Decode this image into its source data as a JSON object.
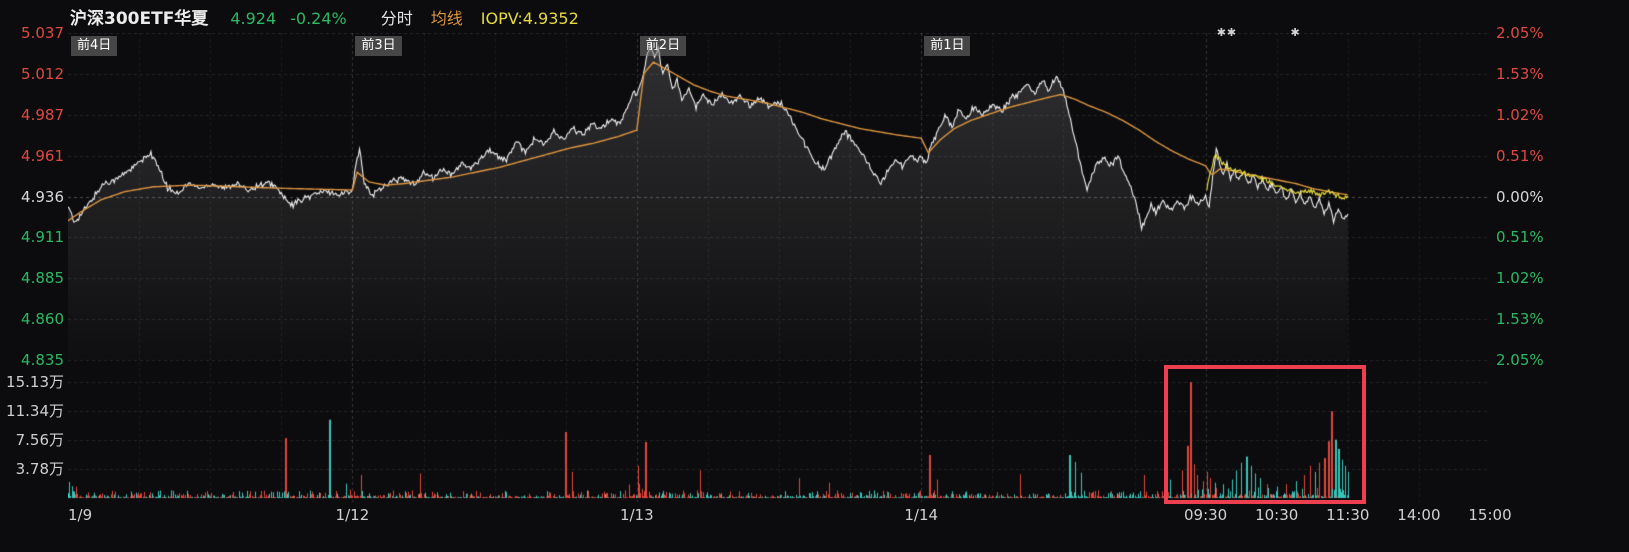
{
  "palette": {
    "up": "#dd4a42",
    "down": "#2db863",
    "ma": "#de9640",
    "iopv": "#e4da3c",
    "price-line": "#f2f2f2",
    "vol-up": "#e2463c",
    "vol-down": "#38c6ba",
    "highlight": "#ee3f51"
  },
  "header": {
    "symbol": "沪深300ETF华夏",
    "price": "4.924",
    "change": "-0.24%",
    "mode": "分时",
    "ma_label": "均线",
    "iopv_label": "IOPV:4.9352"
  },
  "axes": {
    "price_left": [
      {
        "t": "5.037",
        "tone": "up"
      },
      {
        "t": "5.012",
        "tone": "up"
      },
      {
        "t": "4.987",
        "tone": "up"
      },
      {
        "t": "4.961",
        "tone": "up"
      },
      {
        "t": "4.936",
        "tone": "flat"
      },
      {
        "t": "4.911",
        "tone": "down"
      },
      {
        "t": "4.885",
        "tone": "down"
      },
      {
        "t": "4.860",
        "tone": "down"
      },
      {
        "t": "4.835",
        "tone": "down"
      }
    ],
    "pct_right": [
      {
        "t": "2.05%",
        "tone": "up"
      },
      {
        "t": "1.53%",
        "tone": "up"
      },
      {
        "t": "1.02%",
        "tone": "up"
      },
      {
        "t": "0.51%",
        "tone": "up"
      },
      {
        "t": "0.00%",
        "tone": "flat"
      },
      {
        "t": "0.51%",
        "tone": "down"
      },
      {
        "t": "1.02%",
        "tone": "down"
      },
      {
        "t": "1.53%",
        "tone": "down"
      },
      {
        "t": "2.05%",
        "tone": "down"
      }
    ],
    "volume_left": [
      "15.13万",
      "11.34万",
      "7.56万",
      "3.78万"
    ],
    "x_labels": [
      {
        "t": "1/9",
        "m": 0,
        "align": "start"
      },
      {
        "t": "1/12",
        "m": 240,
        "align": "center"
      },
      {
        "t": "1/13",
        "m": 480,
        "align": "center"
      },
      {
        "t": "1/14",
        "m": 720,
        "align": "center"
      },
      {
        "t": "09:30",
        "m": 960,
        "align": "center"
      },
      {
        "t": "10:30",
        "m": 1020,
        "align": "center"
      },
      {
        "t": "11:30",
        "m": 1080,
        "align": "center"
      },
      {
        "t": "14:00",
        "m": 1140,
        "align": "center"
      },
      {
        "t": "15:00",
        "m": 1200,
        "align": "center"
      }
    ]
  },
  "overlays": {
    "day_tags": [
      {
        "t": "前4日",
        "m": 0
      },
      {
        "t": "前3日",
        "m": 240
      },
      {
        "t": "前2日",
        "m": 480
      },
      {
        "t": "前1日",
        "m": 720
      }
    ],
    "markers": [
      {
        "t": "✱✱",
        "m": 978
      },
      {
        "t": "✱",
        "m": 1036
      }
    ],
    "highlight_box": {
      "m_start": 928,
      "m_end": 1092
    }
  },
  "chart_data": {
    "type": "line",
    "title": "沪深300ETF华夏 多日分时图 (5日)",
    "prev_close": 4.936,
    "current_price": 4.924,
    "current_change_pct": -0.24,
    "iopv": 4.9352,
    "x_total_minutes": 1200,
    "minutes_per_day": 240,
    "data_end_minute": 1080,
    "day_starts": [
      0,
      240,
      480,
      720,
      960
    ],
    "price_axis_values": [
      5.037,
      5.012,
      4.987,
      4.961,
      4.936,
      4.911,
      4.885,
      4.86,
      4.835
    ],
    "pct_axis_values": [
      2.05,
      1.53,
      1.02,
      0.51,
      0.0,
      -0.51,
      -1.02,
      -1.53,
      -2.05
    ],
    "volume_axis_values": [
      15.13,
      11.34,
      7.56,
      3.78
    ],
    "volume_unit": "万",
    "price_anchors": [
      [
        0,
        4.93
      ],
      [
        5,
        4.92
      ],
      [
        12,
        4.926
      ],
      [
        20,
        4.934
      ],
      [
        30,
        4.944
      ],
      [
        42,
        4.947
      ],
      [
        52,
        4.953
      ],
      [
        62,
        4.958
      ],
      [
        70,
        4.963
      ],
      [
        76,
        4.954
      ],
      [
        84,
        4.941
      ],
      [
        92,
        4.938
      ],
      [
        102,
        4.944
      ],
      [
        112,
        4.941
      ],
      [
        122,
        4.944
      ],
      [
        132,
        4.941
      ],
      [
        142,
        4.944
      ],
      [
        152,
        4.94
      ],
      [
        162,
        4.943
      ],
      [
        172,
        4.944
      ],
      [
        180,
        4.938
      ],
      [
        188,
        4.93
      ],
      [
        196,
        4.934
      ],
      [
        206,
        4.937
      ],
      [
        218,
        4.939
      ],
      [
        230,
        4.937
      ],
      [
        240,
        4.941
      ],
      [
        243,
        4.956
      ],
      [
        246,
        4.966
      ],
      [
        250,
        4.944
      ],
      [
        256,
        4.937
      ],
      [
        264,
        4.941
      ],
      [
        272,
        4.945
      ],
      [
        282,
        4.947
      ],
      [
        292,
        4.943
      ],
      [
        300,
        4.951
      ],
      [
        308,
        4.947
      ],
      [
        316,
        4.953
      ],
      [
        324,
        4.949
      ],
      [
        332,
        4.957
      ],
      [
        340,
        4.953
      ],
      [
        348,
        4.96
      ],
      [
        356,
        4.965
      ],
      [
        362,
        4.961
      ],
      [
        370,
        4.958
      ],
      [
        378,
        4.97
      ],
      [
        386,
        4.964
      ],
      [
        394,
        4.972
      ],
      [
        402,
        4.968
      ],
      [
        410,
        4.976
      ],
      [
        418,
        4.971
      ],
      [
        426,
        4.978
      ],
      [
        434,
        4.974
      ],
      [
        442,
        4.981
      ],
      [
        450,
        4.977
      ],
      [
        458,
        4.984
      ],
      [
        466,
        4.981
      ],
      [
        472,
        4.991
      ],
      [
        478,
        5.001
      ],
      [
        480,
        4.998
      ],
      [
        484,
        5.008
      ],
      [
        488,
        5.02
      ],
      [
        492,
        5.031
      ],
      [
        495,
        5.021
      ],
      [
        498,
        5.028
      ],
      [
        502,
        5.012
      ],
      [
        506,
        5.017
      ],
      [
        510,
        5.002
      ],
      [
        514,
        5.009
      ],
      [
        518,
        4.996
      ],
      [
        524,
        5.003
      ],
      [
        530,
        4.991
      ],
      [
        536,
        4.999
      ],
      [
        544,
        4.993
      ],
      [
        552,
        4.999
      ],
      [
        560,
        4.994
      ],
      [
        568,
        4.998
      ],
      [
        576,
        4.992
      ],
      [
        584,
        4.997
      ],
      [
        592,
        4.991
      ],
      [
        600,
        4.995
      ],
      [
        608,
        4.987
      ],
      [
        614,
        4.979
      ],
      [
        620,
        4.971
      ],
      [
        626,
        4.963
      ],
      [
        632,
        4.956
      ],
      [
        638,
        4.953
      ],
      [
        644,
        4.961
      ],
      [
        650,
        4.969
      ],
      [
        656,
        4.976
      ],
      [
        662,
        4.97
      ],
      [
        668,
        4.965
      ],
      [
        674,
        4.958
      ],
      [
        680,
        4.95
      ],
      [
        686,
        4.944
      ],
      [
        692,
        4.952
      ],
      [
        698,
        4.959
      ],
      [
        704,
        4.955
      ],
      [
        710,
        4.962
      ],
      [
        716,
        4.958
      ],
      [
        720,
        4.961
      ],
      [
        724,
        4.957
      ],
      [
        728,
        4.966
      ],
      [
        734,
        4.976
      ],
      [
        740,
        4.986
      ],
      [
        746,
        4.98
      ],
      [
        752,
        4.989
      ],
      [
        758,
        4.984
      ],
      [
        764,
        4.991
      ],
      [
        772,
        4.987
      ],
      [
        780,
        4.993
      ],
      [
        788,
        4.989
      ],
      [
        796,
        4.997
      ],
      [
        804,
        5.0
      ],
      [
        810,
        5.005
      ],
      [
        816,
        5.0
      ],
      [
        822,
        5.007
      ],
      [
        828,
        5.002
      ],
      [
        834,
        5.01
      ],
      [
        840,
        5.002
      ],
      [
        844,
        4.99
      ],
      [
        848,
        4.977
      ],
      [
        852,
        4.963
      ],
      [
        856,
        4.95
      ],
      [
        860,
        4.941
      ],
      [
        864,
        4.949
      ],
      [
        868,
        4.955
      ],
      [
        874,
        4.96
      ],
      [
        880,
        4.955
      ],
      [
        886,
        4.961
      ],
      [
        892,
        4.95
      ],
      [
        898,
        4.94
      ],
      [
        902,
        4.93
      ],
      [
        906,
        4.917
      ],
      [
        910,
        4.923
      ],
      [
        914,
        4.931
      ],
      [
        918,
        4.927
      ],
      [
        924,
        4.933
      ],
      [
        930,
        4.927
      ],
      [
        936,
        4.934
      ],
      [
        942,
        4.929
      ],
      [
        948,
        4.936
      ],
      [
        954,
        4.931
      ],
      [
        960,
        4.936
      ],
      [
        963,
        4.93
      ],
      [
        966,
        4.948
      ],
      [
        969,
        4.965
      ],
      [
        972,
        4.956
      ],
      [
        975,
        4.95
      ],
      [
        978,
        4.956
      ],
      [
        981,
        4.947
      ],
      [
        984,
        4.953
      ],
      [
        988,
        4.946
      ],
      [
        992,
        4.951
      ],
      [
        996,
        4.944
      ],
      [
        1000,
        4.949
      ],
      [
        1004,
        4.942
      ],
      [
        1008,
        4.947
      ],
      [
        1012,
        4.94
      ],
      [
        1016,
        4.944
      ],
      [
        1020,
        4.937
      ],
      [
        1024,
        4.942
      ],
      [
        1028,
        4.934
      ],
      [
        1032,
        4.94
      ],
      [
        1036,
        4.933
      ],
      [
        1040,
        4.938
      ],
      [
        1044,
        4.93
      ],
      [
        1048,
        4.936
      ],
      [
        1052,
        4.928
      ],
      [
        1056,
        4.934
      ],
      [
        1060,
        4.925
      ],
      [
        1064,
        4.931
      ],
      [
        1068,
        4.921
      ],
      [
        1072,
        4.928
      ],
      [
        1076,
        4.922
      ],
      [
        1080,
        4.924
      ]
    ],
    "ma_anchors": [
      [
        0,
        4.921
      ],
      [
        12,
        4.927
      ],
      [
        28,
        4.934
      ],
      [
        48,
        4.939
      ],
      [
        72,
        4.942
      ],
      [
        104,
        4.943
      ],
      [
        144,
        4.942
      ],
      [
        184,
        4.941
      ],
      [
        240,
        4.94
      ],
      [
        244,
        4.951
      ],
      [
        254,
        4.945
      ],
      [
        268,
        4.943
      ],
      [
        284,
        4.944
      ],
      [
        304,
        4.946
      ],
      [
        324,
        4.948
      ],
      [
        344,
        4.951
      ],
      [
        364,
        4.954
      ],
      [
        384,
        4.958
      ],
      [
        404,
        4.962
      ],
      [
        424,
        4.966
      ],
      [
        444,
        4.969
      ],
      [
        464,
        4.973
      ],
      [
        480,
        4.977
      ],
      [
        486,
        5.012
      ],
      [
        494,
        5.019
      ],
      [
        504,
        5.015
      ],
      [
        516,
        5.01
      ],
      [
        528,
        5.005
      ],
      [
        542,
        5.001
      ],
      [
        556,
        4.998
      ],
      [
        572,
        4.996
      ],
      [
        588,
        4.994
      ],
      [
        604,
        4.991
      ],
      [
        620,
        4.988
      ],
      [
        636,
        4.984
      ],
      [
        652,
        4.981
      ],
      [
        668,
        4.978
      ],
      [
        684,
        4.976
      ],
      [
        700,
        4.974
      ],
      [
        720,
        4.972
      ],
      [
        726,
        4.963
      ],
      [
        736,
        4.971
      ],
      [
        748,
        4.978
      ],
      [
        762,
        4.983
      ],
      [
        778,
        4.987
      ],
      [
        794,
        4.991
      ],
      [
        810,
        4.994
      ],
      [
        826,
        4.997
      ],
      [
        838,
        4.999
      ],
      [
        850,
        4.996
      ],
      [
        862,
        4.992
      ],
      [
        876,
        4.988
      ],
      [
        890,
        4.983
      ],
      [
        904,
        4.977
      ],
      [
        918,
        4.97
      ],
      [
        932,
        4.964
      ],
      [
        946,
        4.959
      ],
      [
        960,
        4.955
      ],
      [
        965,
        4.949
      ],
      [
        972,
        4.953
      ],
      [
        982,
        4.952
      ],
      [
        994,
        4.95
      ],
      [
        1008,
        4.948
      ],
      [
        1022,
        4.946
      ],
      [
        1036,
        4.944
      ],
      [
        1050,
        4.941
      ],
      [
        1064,
        4.939
      ],
      [
        1080,
        4.937
      ]
    ],
    "iopv_anchors": [
      [
        961,
        4.94
      ],
      [
        964,
        4.951
      ],
      [
        968,
        4.961
      ],
      [
        972,
        4.959
      ],
      [
        976,
        4.955
      ],
      [
        982,
        4.953
      ],
      [
        990,
        4.951
      ],
      [
        1000,
        4.949
      ],
      [
        1010,
        4.946
      ],
      [
        1020,
        4.943
      ],
      [
        1030,
        4.94
      ],
      [
        1040,
        4.938
      ],
      [
        1048,
        4.94
      ],
      [
        1056,
        4.937
      ],
      [
        1064,
        4.939
      ],
      [
        1072,
        4.936
      ],
      [
        1080,
        4.935
      ]
    ],
    "volume_spikes": [
      [
        183,
        7.8,
        "u"
      ],
      [
        220,
        10.2,
        "d"
      ],
      [
        247,
        3.0,
        "u"
      ],
      [
        297,
        3.2,
        "u"
      ],
      [
        419,
        8.6,
        "u"
      ],
      [
        425,
        3.4,
        "u"
      ],
      [
        481,
        4.2,
        "u"
      ],
      [
        487,
        7.3,
        "u"
      ],
      [
        533,
        3.6,
        "u"
      ],
      [
        617,
        2.6,
        "u"
      ],
      [
        642,
        2.0,
        "u"
      ],
      [
        727,
        5.6,
        "u"
      ],
      [
        733,
        2.4,
        "u"
      ],
      [
        803,
        3.1,
        "u"
      ],
      [
        845,
        5.6,
        "d"
      ],
      [
        850,
        4.7,
        "d"
      ],
      [
        855,
        3.3,
        "d"
      ],
      [
        908,
        3.0,
        "u"
      ],
      [
        930,
        2.4,
        "d"
      ],
      [
        940,
        3.6,
        "u"
      ],
      [
        944,
        6.8,
        "u"
      ],
      [
        947,
        15.1,
        "u"
      ],
      [
        950,
        4.4,
        "u"
      ],
      [
        953,
        3.0,
        "u"
      ],
      [
        958,
        2.2,
        "u"
      ],
      [
        961,
        3.4,
        "u"
      ],
      [
        964,
        2.6,
        "u"
      ],
      [
        968,
        2.0,
        "d"
      ],
      [
        975,
        1.8,
        "d"
      ],
      [
        982,
        2.4,
        "d"
      ],
      [
        986,
        3.6,
        "d"
      ],
      [
        990,
        4.6,
        "d"
      ],
      [
        994,
        5.4,
        "d"
      ],
      [
        998,
        4.2,
        "d"
      ],
      [
        1002,
        3.2,
        "d"
      ],
      [
        1006,
        2.6,
        "d"
      ],
      [
        1012,
        1.8,
        "u"
      ],
      [
        1020,
        1.5,
        "d"
      ],
      [
        1028,
        1.8,
        "u"
      ],
      [
        1036,
        2.2,
        "d"
      ],
      [
        1043,
        3.0,
        "u"
      ],
      [
        1048,
        4.2,
        "u"
      ],
      [
        1052,
        3.4,
        "d"
      ],
      [
        1056,
        4.6,
        "u"
      ],
      [
        1060,
        5.2,
        "u"
      ],
      [
        1063,
        7.4,
        "u"
      ],
      [
        1066,
        11.3,
        "u"
      ],
      [
        1069,
        7.6,
        "d"
      ],
      [
        1072,
        6.4,
        "d"
      ],
      [
        1075,
        5.0,
        "d"
      ],
      [
        1078,
        4.2,
        "d"
      ],
      [
        1080,
        3.4,
        "d"
      ]
    ]
  }
}
